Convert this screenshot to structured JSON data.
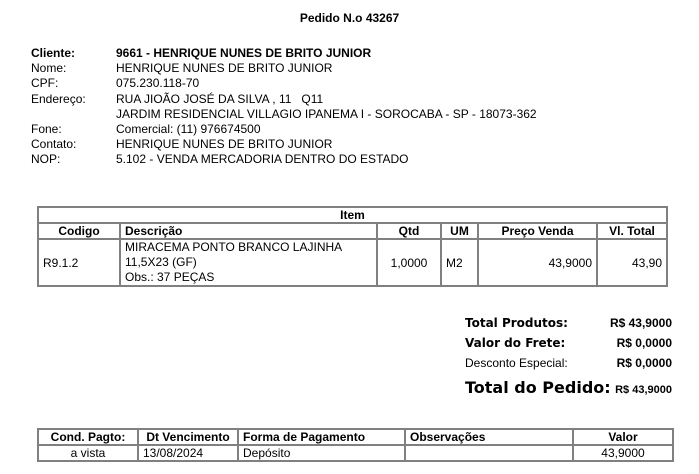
{
  "title": "Pedido N.o 43267",
  "client": {
    "cliente_label": "Cliente:",
    "cliente": "9661 - HENRIQUE NUNES DE BRITO JUNIOR",
    "nome_label": "Nome:",
    "nome": "HENRIQUE NUNES DE BRITO JUNIOR",
    "cpf_label": "CPF:",
    "cpf": "075.230.118-70",
    "endereco_label": "Endereço:",
    "endereco1": "RUA JIOÃO JOSÉ DA SILVA , 11   Q11",
    "endereco2": "JARDIM RESIDENCIAL VILLAGIO IPANEMA I - SOROCABA - SP - 18073-362",
    "fone_label": "Fone:",
    "fone": "Comercial: (11) 976674500",
    "contato_label": "Contato:",
    "contato": "HENRIQUE NUNES DE BRITO JUNIOR",
    "nop_label": "NOP:",
    "nop": "5.102 - VENDA MERCADORIA DENTRO DO ESTADO"
  },
  "items": {
    "title": "Item",
    "headers": [
      "Codigo",
      "Descrição",
      "Qtd",
      "UM",
      "Preço Venda",
      "Vl. Total"
    ],
    "rows": [
      {
        "codigo": "R9.1.2",
        "desc1": "MIRACEMA PONTO BRANCO LAJINHA",
        "desc2": "11,5X23 (GF)",
        "obs": "Obs.: 37 PEÇAS",
        "qtd": "1,0000",
        "um": "M2",
        "preco": "43,9000",
        "total": "43,90"
      }
    ]
  },
  "totals": {
    "produtos_label": "Total Produtos:",
    "produtos": "R$ 43,9000",
    "frete_label": "Valor do Frete:",
    "frete": "R$ 0,0000",
    "desconto_label": "Desconto Especial:",
    "desconto": "R$ 0,0000",
    "pedido_label": "Total do Pedido:",
    "pedido": "R$ 43,9000"
  },
  "payment": {
    "headers": [
      "Cond. Pagto:",
      "Dt Vencimento",
      "Forma de Pagamento",
      "Observações",
      "Valor"
    ],
    "rows": [
      {
        "cond": "a vista",
        "venc": "13/08/2024",
        "forma": "Depósito",
        "obs": "",
        "valor": "43,9000"
      }
    ]
  }
}
